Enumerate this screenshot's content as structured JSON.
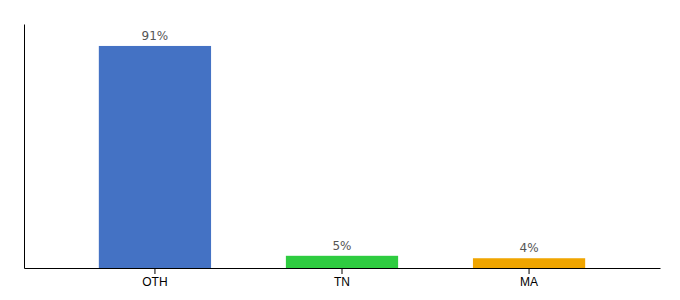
{
  "chart_data": {
    "type": "bar",
    "categories": [
      "OTH",
      "TN",
      "MA"
    ],
    "values": [
      91,
      5,
      4
    ],
    "value_labels": [
      "91%",
      "5%",
      "4%"
    ],
    "colors": [
      "#4472c4",
      "#2ecc40",
      "#f0a500"
    ],
    "ylim": [
      0,
      100
    ],
    "data_labels": true,
    "tick_labels": "x"
  }
}
